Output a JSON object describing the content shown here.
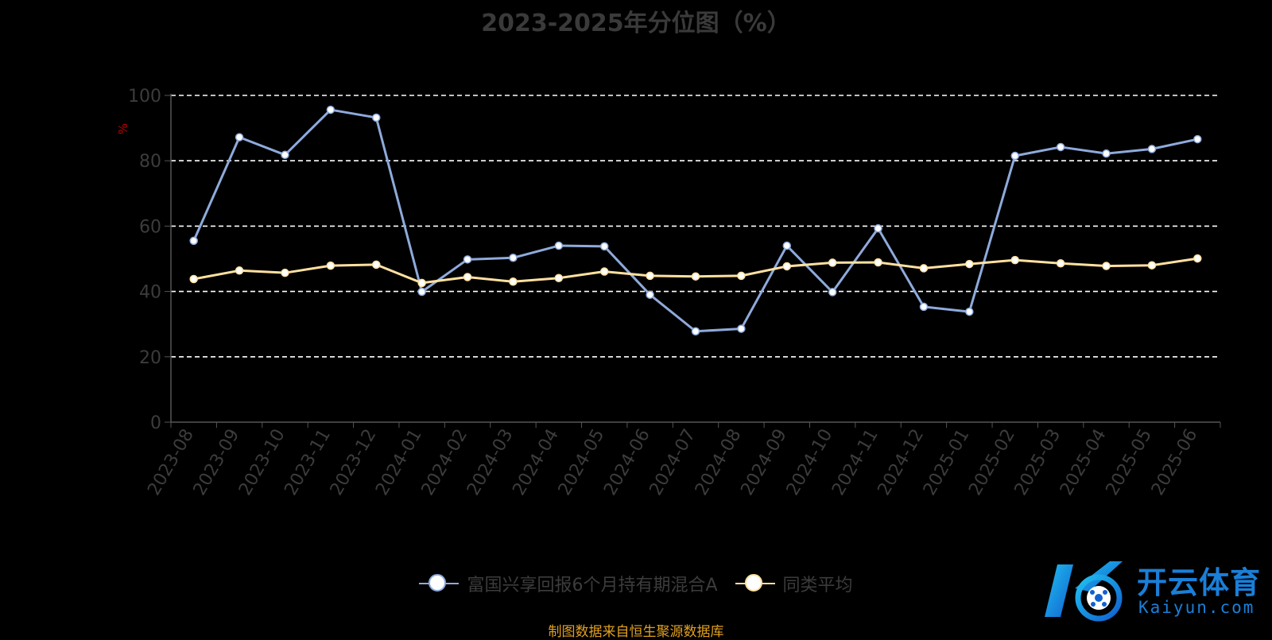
{
  "chart_data": {
    "type": "line",
    "title": "2023-2025年分位图（%）",
    "ylabel": "%",
    "ylim": [
      0,
      100
    ],
    "yticks": [
      0,
      20,
      40,
      60,
      80,
      100
    ],
    "grid": true,
    "legend_position": "bottom-center",
    "categories": [
      "2023-08",
      "2023-09",
      "2023-10",
      "2023-11",
      "2023-12",
      "2024-01",
      "2024-02",
      "2024-03",
      "2024-04",
      "2024-05",
      "2024-06",
      "2024-07",
      "2024-08",
      "2024-09",
      "2024-10",
      "2024-11",
      "2024-12",
      "2025-01",
      "2025-02",
      "2025-03",
      "2025-04",
      "2025-05",
      "2025-06"
    ],
    "series": [
      {
        "name": "富国兴享回报6个月持有期混合A",
        "color": "#8eaadb",
        "values": [
          55.5,
          87.2,
          81.8,
          95.6,
          93.2,
          39.9,
          49.8,
          50.3,
          54.0,
          53.8,
          39.0,
          27.8,
          28.6,
          54.0,
          39.8,
          59.3,
          35.3,
          33.8,
          81.5,
          84.2,
          82.2,
          83.6,
          86.6
        ]
      },
      {
        "name": "同类平均",
        "color": "#ffe0a0",
        "values": [
          43.8,
          46.4,
          45.7,
          47.9,
          48.2,
          42.6,
          44.4,
          43.0,
          44.1,
          46.1,
          44.8,
          44.6,
          44.8,
          47.7,
          48.8,
          48.9,
          47.1,
          48.4,
          49.6,
          48.6,
          47.8,
          48.0,
          50.1
        ]
      }
    ]
  },
  "source_text": "制图数据来自恒生聚源数据库",
  "logo": {
    "cn": "开云体育",
    "en": "Kaiyun.com",
    "color": "#1a7fd8"
  }
}
